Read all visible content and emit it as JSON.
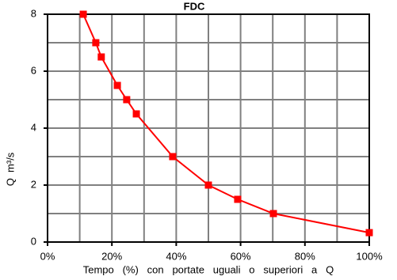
{
  "chart_data": {
    "type": "line",
    "title": "FDC",
    "x_label": "Tempo   (%)   con   portate   uguali   o   superiori   a   Q",
    "y_label": "Q  m³/s",
    "series": [
      {
        "name": "FDC",
        "color": "#ff0000",
        "x": [
          11.1,
          15,
          16.7,
          21.7,
          24.6,
          27.6,
          38.9,
          50,
          59.1,
          70.2,
          100
        ],
        "values": [
          8,
          7,
          6.5,
          5.5,
          5,
          4.5,
          3,
          2,
          1.5,
          1,
          0.33
        ]
      }
    ],
    "xlim": [
      0,
      100
    ],
    "ylim": [
      0,
      8
    ],
    "xticks": [
      {
        "value": 0,
        "label": "0%"
      },
      {
        "value": 20,
        "label": "20%"
      },
      {
        "value": 40,
        "label": "40%"
      },
      {
        "value": 60,
        "label": "60%"
      },
      {
        "value": 80,
        "label": "80%"
      },
      {
        "value": 100,
        "label": "100%"
      }
    ],
    "yticks": [
      0,
      2,
      4,
      6,
      8
    ],
    "xgrid": [
      10,
      20,
      30,
      40,
      50,
      60,
      70,
      80,
      90
    ],
    "ygrid": [
      1,
      2,
      3,
      4,
      5,
      6,
      7
    ],
    "grid": true
  }
}
